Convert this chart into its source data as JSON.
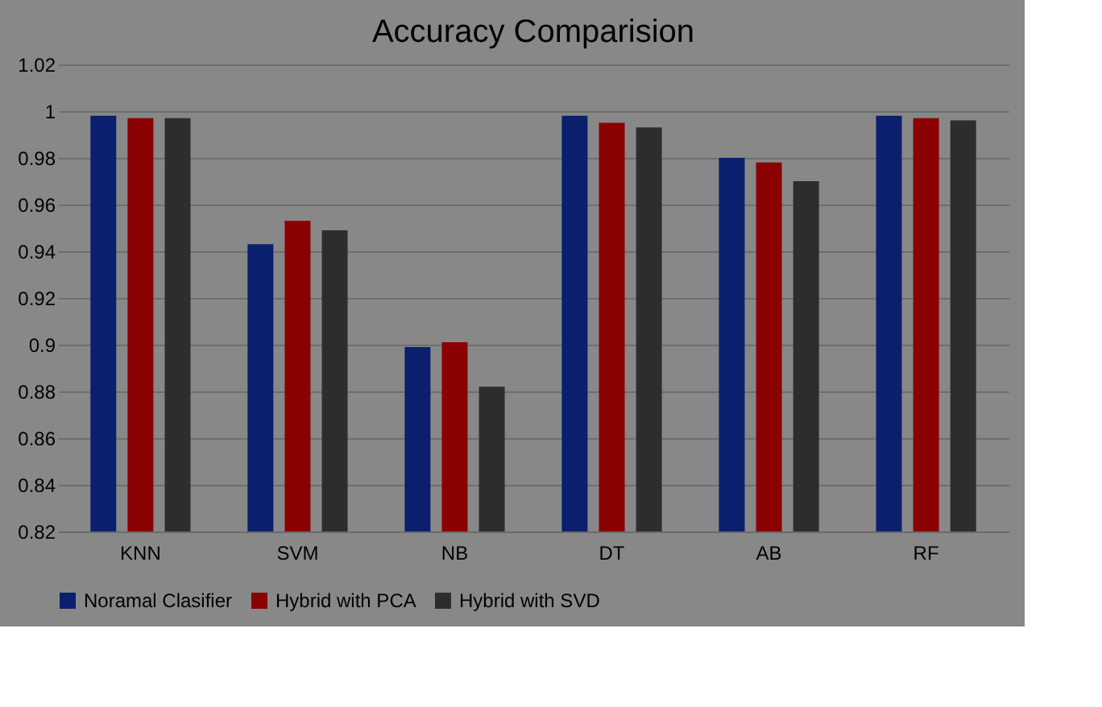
{
  "chart_data": {
    "type": "bar",
    "title": "Accuracy Comparision",
    "categories": [
      "KNN",
      "SVM",
      "NB",
      "DT",
      "AB",
      "RF"
    ],
    "series": [
      {
        "name": "Noramal Clasifier",
        "color": "#0a1f6e",
        "values": [
          0.998,
          0.943,
          0.899,
          0.998,
          0.98,
          0.998
        ]
      },
      {
        "name": "Hybrid with PCA",
        "color": "#8b0000",
        "values": [
          0.997,
          0.953,
          0.901,
          0.995,
          0.978,
          0.997
        ]
      },
      {
        "name": "Hybrid with SVD",
        "color": "#2d2d2d",
        "values": [
          0.997,
          0.949,
          0.882,
          0.993,
          0.97,
          0.996
        ]
      }
    ],
    "ylim": [
      0.82,
      1.02
    ],
    "yticks": [
      0.82,
      0.84,
      0.86,
      0.88,
      0.9,
      0.92,
      0.94,
      0.96,
      0.98,
      1,
      1.02
    ],
    "grid": "y",
    "legend": "bottom"
  }
}
